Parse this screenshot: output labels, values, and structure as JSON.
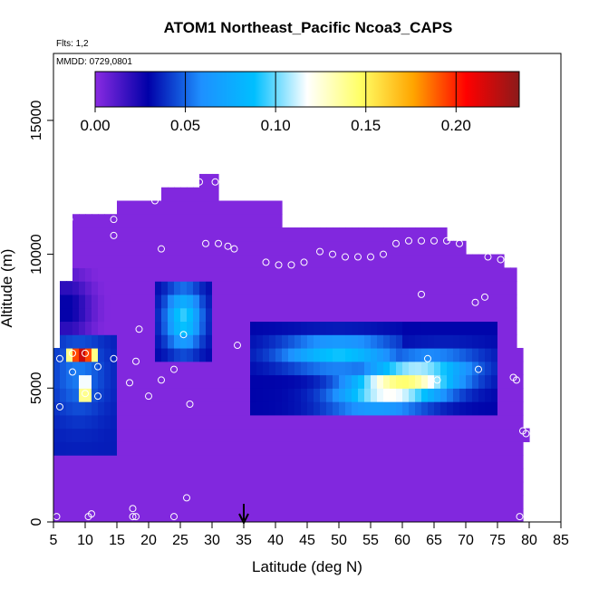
{
  "chart_data": {
    "type": "heatmap",
    "title": "ATOM1 Northeast_Pacific Ncoa3_CAPS",
    "flights_label": "Flts: 1,2",
    "dates_label": "MMDD: 0729,0801",
    "xlabel": "Latitude (deg N)",
    "ylabel": "Altitude (m)",
    "xlim": [
      5,
      85
    ],
    "ylim": [
      0,
      17500
    ],
    "x_ticks": [
      5,
      10,
      15,
      20,
      25,
      30,
      35,
      40,
      45,
      50,
      55,
      60,
      65,
      70,
      75,
      80,
      85
    ],
    "y_ticks": [
      0,
      5000,
      10000,
      15000
    ],
    "colorbar": {
      "min": 0,
      "max": 0.235,
      "ticks": [
        "0.00",
        "0.05",
        "0.10",
        "0.15",
        "0.20"
      ],
      "tick_values": [
        0,
        0.05,
        0.1,
        0.15,
        0.2
      ],
      "colors": [
        "#8a2be2",
        "#0000a8",
        "#1e90ff",
        "#00bfff",
        "#ffffff",
        "#ffff66",
        "#ffa500",
        "#ff0000",
        "#8b1a1a"
      ]
    },
    "marker_latitude": 35,
    "cell_size": {
      "lat": 1,
      "alt": 500
    },
    "columns": [
      {
        "lat0": 5,
        "lat1": 6,
        "alt0": 0,
        "alt1": 6500
      },
      {
        "lat0": 6,
        "lat1": 8,
        "alt0": 0,
        "alt1": 9000
      },
      {
        "lat0": 8,
        "lat1": 10,
        "alt0": 0,
        "alt1": 11500
      },
      {
        "lat0": 10,
        "lat1": 15,
        "alt0": 0,
        "alt1": 11500
      },
      {
        "lat0": 15,
        "lat1": 22,
        "alt0": 0,
        "alt1": 12000
      },
      {
        "lat0": 22,
        "lat1": 28,
        "alt0": 0,
        "alt1": 12500
      },
      {
        "lat0": 28,
        "lat1": 31,
        "alt0": 0,
        "alt1": 13000
      },
      {
        "lat0": 31,
        "lat1": 41,
        "alt0": 0,
        "alt1": 12000
      },
      {
        "lat0": 41,
        "lat1": 48,
        "alt0": 0,
        "alt1": 11000
      },
      {
        "lat0": 48,
        "lat1": 67,
        "alt0": 0,
        "alt1": 11000
      },
      {
        "lat0": 67,
        "lat1": 70,
        "alt0": 0,
        "alt1": 10500
      },
      {
        "lat0": 70,
        "lat1": 73,
        "alt0": 0,
        "alt1": 10000
      },
      {
        "lat0": 73,
        "lat1": 76,
        "alt0": 0,
        "alt1": 10000
      },
      {
        "lat0": 76,
        "lat1": 78,
        "alt0": 0,
        "alt1": 9500
      },
      {
        "lat0": 78,
        "lat1": 79,
        "alt0": 0,
        "alt1": 6500
      },
      {
        "lat0": 79,
        "lat1": 80,
        "alt0": 3000,
        "alt1": 3500
      }
    ],
    "features": [
      {
        "name": "background",
        "value": 0.0
      },
      {
        "name": "plume-low-latitude",
        "lat": [
          5,
          15
        ],
        "alt": [
          2500,
          7000
        ],
        "value": 0.05
      },
      {
        "name": "plume-low-latitude-core-upper",
        "lat": [
          7.5,
          12
        ],
        "alt": [
          5900,
          6700
        ],
        "value": 0.2
      },
      {
        "name": "plume-low-latitude-core-lower",
        "lat": [
          9,
          11
        ],
        "alt": [
          4500,
          5300
        ],
        "value": 0.15
      },
      {
        "name": "plume-mid-latitude",
        "lat": [
          21,
          30
        ],
        "alt": [
          5800,
          9200
        ],
        "value": 0.09
      },
      {
        "name": "plume-high-latitude",
        "lat": [
          36,
          75
        ],
        "alt": [
          4000,
          7300
        ],
        "value": 0.14
      }
    ],
    "observations": [
      [
        5.5,
        200
      ],
      [
        10.5,
        200
      ],
      [
        11,
        300
      ],
      [
        17.5,
        200
      ],
      [
        17.5,
        500
      ],
      [
        18,
        200
      ],
      [
        24,
        200
      ],
      [
        26,
        900
      ],
      [
        6,
        4300
      ],
      [
        6,
        6100
      ],
      [
        8,
        5600
      ],
      [
        8,
        6300
      ],
      [
        10,
        4800
      ],
      [
        10,
        6300
      ],
      [
        12,
        4700
      ],
      [
        12,
        5800
      ],
      [
        14.5,
        6100
      ],
      [
        17,
        5200
      ],
      [
        18,
        6000
      ],
      [
        18.5,
        7200
      ],
      [
        20,
        4700
      ],
      [
        22,
        5300
      ],
      [
        24,
        5700
      ],
      [
        25.5,
        7000
      ],
      [
        26.5,
        4400
      ],
      [
        34,
        6600
      ],
      [
        7,
        10600
      ],
      [
        7.5,
        11300
      ],
      [
        14.5,
        10700
      ],
      [
        14.5,
        11300
      ],
      [
        21,
        12000
      ],
      [
        22,
        10200
      ],
      [
        28,
        12700
      ],
      [
        30.5,
        12700
      ],
      [
        29,
        10400
      ],
      [
        31,
        10400
      ],
      [
        32.5,
        10300
      ],
      [
        33.5,
        10200
      ],
      [
        38.5,
        9700
      ],
      [
        40.5,
        9600
      ],
      [
        42.5,
        9600
      ],
      [
        44.5,
        9700
      ],
      [
        47,
        10100
      ],
      [
        49,
        10000
      ],
      [
        51,
        9900
      ],
      [
        53,
        9900
      ],
      [
        55,
        9900
      ],
      [
        57,
        10000
      ],
      [
        59,
        10400
      ],
      [
        61,
        10500
      ],
      [
        63,
        10500
      ],
      [
        65,
        10500
      ],
      [
        67,
        10500
      ],
      [
        68,
        11300
      ],
      [
        69,
        10400
      ],
      [
        71,
        10300
      ],
      [
        73.5,
        9900
      ],
      [
        75.5,
        9800
      ],
      [
        63,
        8500
      ],
      [
        71.5,
        8200
      ],
      [
        73,
        8400
      ],
      [
        64,
        6100
      ],
      [
        65.5,
        5300
      ],
      [
        72,
        5700
      ],
      [
        77.5,
        5400
      ],
      [
        78,
        5300
      ],
      [
        79,
        3400
      ],
      [
        79.5,
        3300
      ],
      [
        78.5,
        200
      ]
    ]
  }
}
